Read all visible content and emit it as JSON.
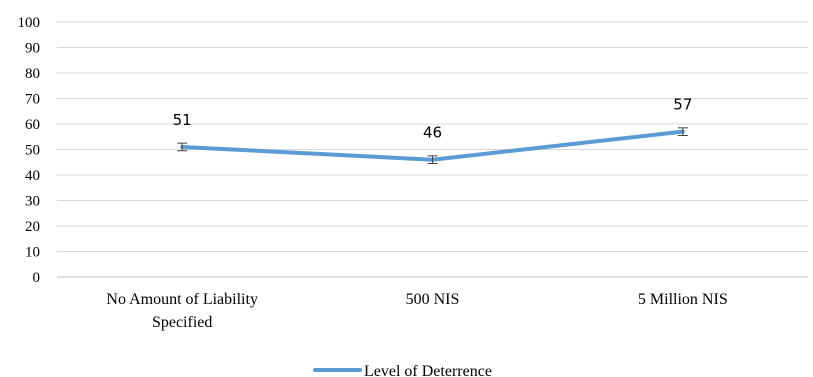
{
  "chart_data": {
    "type": "line",
    "categories": [
      [
        "No Amount of Liability",
        "Specified"
      ],
      [
        "500 NIS"
      ],
      [
        "5 Million NIS"
      ]
    ],
    "series": [
      {
        "name": "Level of Deterrence",
        "values": [
          51,
          46,
          57
        ],
        "data_labels": [
          "51",
          "46",
          "57"
        ],
        "error": [
          1.5,
          1.5,
          1.5
        ],
        "color": "#5b9bd5"
      }
    ],
    "ylim": [
      0,
      100
    ],
    "yticks": [
      "0",
      "10",
      "20",
      "30",
      "40",
      "50",
      "60",
      "70",
      "80",
      "90",
      "100"
    ],
    "grid": true,
    "legend_position": "bottom"
  }
}
